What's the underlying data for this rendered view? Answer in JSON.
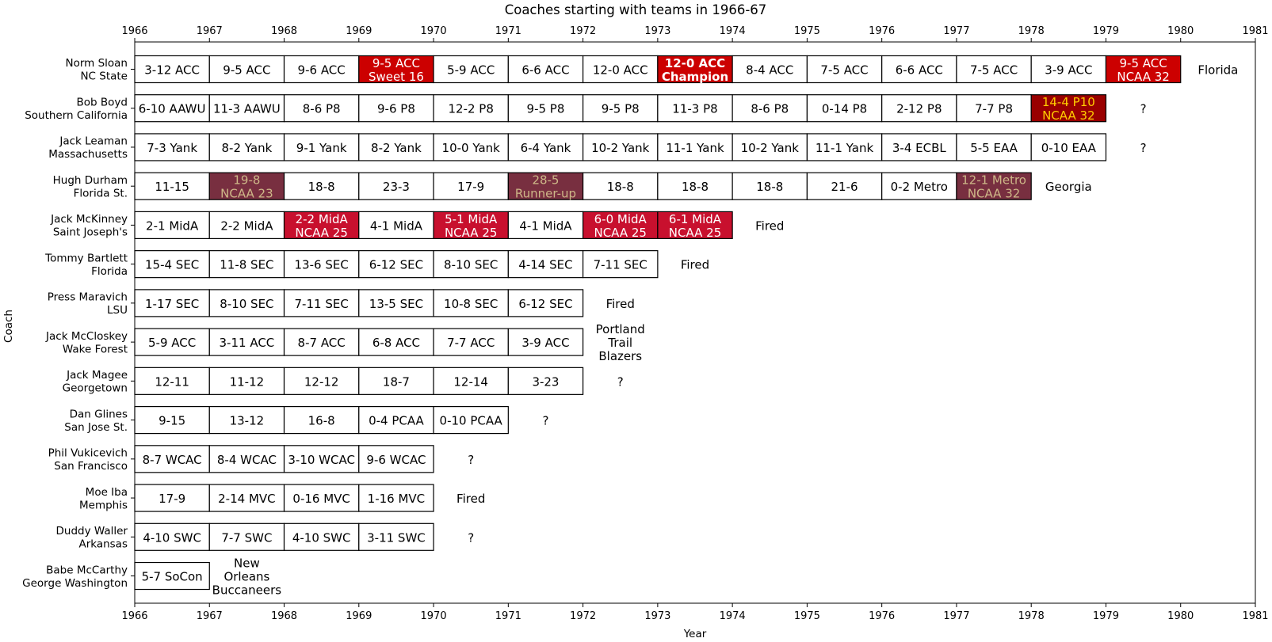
{
  "chart_data": {
    "type": "table",
    "title": "Coaches starting with teams in 1966-67",
    "xlabel": "Year",
    "ylabel": "Coach",
    "xlim": [
      1966,
      1981
    ],
    "xticks": [
      "1966",
      "1967",
      "1968",
      "1969",
      "1970",
      "1971",
      "1972",
      "1973",
      "1974",
      "1975",
      "1976",
      "1977",
      "1978",
      "1979",
      "1980",
      "1981"
    ],
    "colors": {
      "default_fill": "#ffffff",
      "red": "#c8102e",
      "bright_red": "#cc0000",
      "dark_red": "#990000",
      "maroon": "#782f40",
      "gold": "#ffcc00",
      "tan": "#ceb888",
      "white": "#ffffff",
      "black": "#000000"
    },
    "rows": [
      {
        "name": "Norm Sloan",
        "team": "NC State",
        "seasons": [
          {
            "year": 1966,
            "label": "3-12 ACC"
          },
          {
            "year": 1967,
            "label": "9-5 ACC"
          },
          {
            "year": 1968,
            "label": "9-6 ACC"
          },
          {
            "year": 1969,
            "label": "9-5 ACC\nSweet 16",
            "fill": "#cc0000",
            "color": "#ffffff"
          },
          {
            "year": 1970,
            "label": "5-9 ACC"
          },
          {
            "year": 1971,
            "label": "6-6 ACC"
          },
          {
            "year": 1972,
            "label": "12-0 ACC"
          },
          {
            "year": 1973,
            "label": "12-0 ACC\nChampion",
            "fill": "#cc0000",
            "color": "#ffffff",
            "bold": true
          },
          {
            "year": 1974,
            "label": "8-4 ACC"
          },
          {
            "year": 1975,
            "label": "7-5 ACC"
          },
          {
            "year": 1976,
            "label": "6-6 ACC"
          },
          {
            "year": 1977,
            "label": "7-5 ACC"
          },
          {
            "year": 1978,
            "label": "3-9 ACC"
          },
          {
            "year": 1979,
            "label": "9-5 ACC\nNCAA 32",
            "fill": "#cc0000",
            "color": "#ffffff"
          }
        ],
        "next": "Florida"
      },
      {
        "name": "Bob Boyd",
        "team": "Southern California",
        "seasons": [
          {
            "year": 1966,
            "label": "6-10 AAWU"
          },
          {
            "year": 1967,
            "label": "11-3 AAWU"
          },
          {
            "year": 1968,
            "label": "8-6 P8"
          },
          {
            "year": 1969,
            "label": "9-6 P8"
          },
          {
            "year": 1970,
            "label": "12-2 P8"
          },
          {
            "year": 1971,
            "label": "9-5 P8"
          },
          {
            "year": 1972,
            "label": "9-5 P8"
          },
          {
            "year": 1973,
            "label": "11-3 P8"
          },
          {
            "year": 1974,
            "label": "8-6 P8"
          },
          {
            "year": 1975,
            "label": "0-14 P8"
          },
          {
            "year": 1976,
            "label": "2-12 P8"
          },
          {
            "year": 1977,
            "label": "7-7 P8"
          },
          {
            "year": 1978,
            "label": "14-4 P10\nNCAA 32",
            "fill": "#990000",
            "color": "#ffcc00"
          }
        ],
        "next": "?"
      },
      {
        "name": "Jack Leaman",
        "team": "Massachusetts",
        "seasons": [
          {
            "year": 1966,
            "label": "7-3 Yank"
          },
          {
            "year": 1967,
            "label": "8-2 Yank"
          },
          {
            "year": 1968,
            "label": "9-1 Yank"
          },
          {
            "year": 1969,
            "label": "8-2 Yank"
          },
          {
            "year": 1970,
            "label": "10-0 Yank"
          },
          {
            "year": 1971,
            "label": "6-4 Yank"
          },
          {
            "year": 1972,
            "label": "10-2 Yank"
          },
          {
            "year": 1973,
            "label": "11-1 Yank"
          },
          {
            "year": 1974,
            "label": "10-2 Yank"
          },
          {
            "year": 1975,
            "label": "11-1 Yank"
          },
          {
            "year": 1976,
            "label": "3-4 ECBL"
          },
          {
            "year": 1977,
            "label": "5-5 EAA"
          },
          {
            "year": 1978,
            "label": "0-10 EAA"
          }
        ],
        "next": "?"
      },
      {
        "name": "Hugh Durham",
        "team": "Florida St.",
        "seasons": [
          {
            "year": 1966,
            "label": "11-15"
          },
          {
            "year": 1967,
            "label": "19-8\nNCAA 23",
            "fill": "#782f40",
            "color": "#ceb888"
          },
          {
            "year": 1968,
            "label": "18-8"
          },
          {
            "year": 1969,
            "label": "23-3"
          },
          {
            "year": 1970,
            "label": "17-9"
          },
          {
            "year": 1971,
            "label": "28-5\nRunner-up",
            "fill": "#782f40",
            "color": "#ceb888"
          },
          {
            "year": 1972,
            "label": "18-8"
          },
          {
            "year": 1973,
            "label": "18-8"
          },
          {
            "year": 1974,
            "label": "18-8"
          },
          {
            "year": 1975,
            "label": "21-6"
          },
          {
            "year": 1976,
            "label": "0-2 Metro"
          },
          {
            "year": 1977,
            "label": "12-1 Metro\nNCAA 32",
            "fill": "#782f40",
            "color": "#ceb888"
          }
        ],
        "next": "Georgia"
      },
      {
        "name": "Jack McKinney",
        "team": "Saint Joseph's",
        "seasons": [
          {
            "year": 1966,
            "label": "2-1 MidA"
          },
          {
            "year": 1967,
            "label": "2-2 MidA"
          },
          {
            "year": 1968,
            "label": "2-2 MidA\nNCAA 25",
            "fill": "#c8102e",
            "color": "#ffffff"
          },
          {
            "year": 1969,
            "label": "4-1 MidA"
          },
          {
            "year": 1970,
            "label": "5-1 MidA\nNCAA 25",
            "fill": "#c8102e",
            "color": "#ffffff"
          },
          {
            "year": 1971,
            "label": "4-1 MidA"
          },
          {
            "year": 1972,
            "label": "6-0 MidA\nNCAA 25",
            "fill": "#c8102e",
            "color": "#ffffff"
          },
          {
            "year": 1973,
            "label": "6-1 MidA\nNCAA 25",
            "fill": "#c8102e",
            "color": "#ffffff"
          }
        ],
        "next": "Fired"
      },
      {
        "name": "Tommy Bartlett",
        "team": "Florida",
        "seasons": [
          {
            "year": 1966,
            "label": "15-4 SEC"
          },
          {
            "year": 1967,
            "label": "11-8 SEC"
          },
          {
            "year": 1968,
            "label": "13-6 SEC"
          },
          {
            "year": 1969,
            "label": "6-12 SEC"
          },
          {
            "year": 1970,
            "label": "8-10 SEC"
          },
          {
            "year": 1971,
            "label": "4-14 SEC"
          },
          {
            "year": 1972,
            "label": "7-11 SEC"
          }
        ],
        "next": "Fired"
      },
      {
        "name": "Press Maravich",
        "team": "LSU",
        "seasons": [
          {
            "year": 1966,
            "label": "1-17 SEC"
          },
          {
            "year": 1967,
            "label": "8-10 SEC"
          },
          {
            "year": 1968,
            "label": "7-11 SEC"
          },
          {
            "year": 1969,
            "label": "13-5 SEC"
          },
          {
            "year": 1970,
            "label": "10-8 SEC"
          },
          {
            "year": 1971,
            "label": "6-12 SEC"
          }
        ],
        "next": "Fired"
      },
      {
        "name": "Jack McCloskey",
        "team": "Wake Forest",
        "seasons": [
          {
            "year": 1966,
            "label": "5-9 ACC"
          },
          {
            "year": 1967,
            "label": "3-11 ACC"
          },
          {
            "year": 1968,
            "label": "8-7 ACC"
          },
          {
            "year": 1969,
            "label": "6-8 ACC"
          },
          {
            "year": 1970,
            "label": "7-7 ACC"
          },
          {
            "year": 1971,
            "label": "3-9 ACC"
          }
        ],
        "next": "Portland\nTrail\nBlazers"
      },
      {
        "name": "Jack Magee",
        "team": "Georgetown",
        "seasons": [
          {
            "year": 1966,
            "label": "12-11"
          },
          {
            "year": 1967,
            "label": "11-12"
          },
          {
            "year": 1968,
            "label": "12-12"
          },
          {
            "year": 1969,
            "label": "18-7"
          },
          {
            "year": 1970,
            "label": "12-14"
          },
          {
            "year": 1971,
            "label": "3-23"
          }
        ],
        "next": "?"
      },
      {
        "name": "Dan Glines",
        "team": "San Jose St.",
        "seasons": [
          {
            "year": 1966,
            "label": "9-15"
          },
          {
            "year": 1967,
            "label": "13-12"
          },
          {
            "year": 1968,
            "label": "16-8"
          },
          {
            "year": 1969,
            "label": "0-4 PCAA"
          },
          {
            "year": 1970,
            "label": "0-10 PCAA"
          }
        ],
        "next": "?"
      },
      {
        "name": "Phil Vukicevich",
        "team": "San Francisco",
        "seasons": [
          {
            "year": 1966,
            "label": "8-7 WCAC"
          },
          {
            "year": 1967,
            "label": "8-4 WCAC"
          },
          {
            "year": 1968,
            "label": "3-10 WCAC"
          },
          {
            "year": 1969,
            "label": "9-6 WCAC"
          }
        ],
        "next": "?"
      },
      {
        "name": "Moe Iba",
        "team": "Memphis",
        "seasons": [
          {
            "year": 1966,
            "label": "17-9"
          },
          {
            "year": 1967,
            "label": "2-14 MVC"
          },
          {
            "year": 1968,
            "label": "0-16 MVC"
          },
          {
            "year": 1969,
            "label": "1-16 MVC"
          }
        ],
        "next": "Fired"
      },
      {
        "name": "Duddy Waller",
        "team": "Arkansas",
        "seasons": [
          {
            "year": 1966,
            "label": "4-10 SWC"
          },
          {
            "year": 1967,
            "label": "7-7 SWC"
          },
          {
            "year": 1968,
            "label": "4-10 SWC"
          },
          {
            "year": 1969,
            "label": "3-11 SWC"
          }
        ],
        "next": "?"
      },
      {
        "name": "Babe McCarthy",
        "team": "George Washington",
        "seasons": [
          {
            "year": 1966,
            "label": "5-7 SoCon"
          }
        ],
        "next": "New\nOrleans\nBuccaneers"
      }
    ]
  }
}
